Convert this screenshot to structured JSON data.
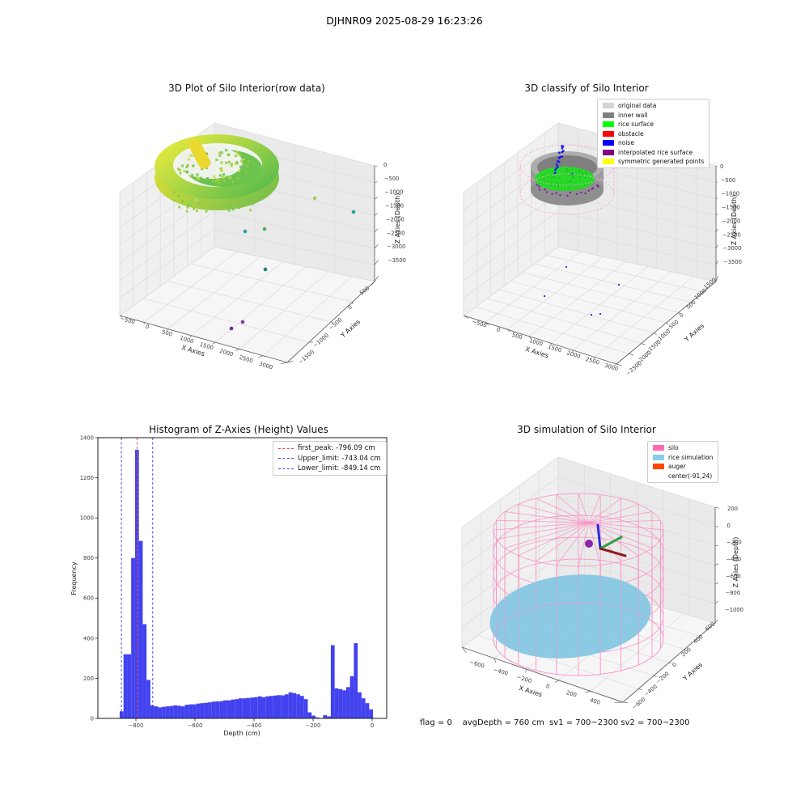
{
  "page": {
    "suptitle": "DJHNR09 2025-08-29 16:23:26",
    "footer": "flag = 0    avgDepth = 760 cm  sv1 = 700~2300 sv2 = 700~2300"
  },
  "chart_data": [
    {
      "id": "raw_3d",
      "type": "scatter",
      "projection": "3d",
      "title": "3D Plot of Silo Interior(row data)",
      "xlabel": "X Axies",
      "ylabel": "Y Axies",
      "zlabel": "Z Axies (Depth)",
      "x_ticks": [
        -500,
        0,
        500,
        1000,
        1500,
        2000,
        2500,
        3000
      ],
      "y_ticks": [
        500,
        0,
        -500,
        -1000,
        -1500
      ],
      "z_ticks": [
        0,
        -500,
        -1000,
        -1500,
        -2000,
        -2500,
        -3000,
        -3500
      ],
      "series": [
        {
          "name": "silo rim point cloud",
          "colors": [
            "#f3ee3a",
            "#b5da45",
            "#5cbd4c"
          ],
          "note": "dense yellow-green ring of points near z=0 with points spilling below the rim"
        },
        {
          "name": "sparse outlier points",
          "colors": [
            "#2aa198",
            "#44b05e",
            "#6d2f8e"
          ],
          "note": "isolated green, teal and purple points scattered toward the floor"
        }
      ]
    },
    {
      "id": "classify_3d",
      "type": "scatter",
      "projection": "3d",
      "title": "3D classify of Silo Interior",
      "xlabel": "X Axies",
      "ylabel": "Y Axies",
      "zlabel": "Z Axies (Depth)",
      "x_ticks": [
        -500,
        0,
        500,
        1000,
        1500,
        2000,
        2500,
        3000
      ],
      "y_ticks": [
        1500,
        1000,
        500,
        0,
        -500,
        -1000,
        -1500,
        -2000,
        -2500
      ],
      "z_ticks": [
        0,
        -500,
        -1000,
        -1500,
        -2000,
        -2500,
        -3000,
        -3500
      ],
      "legend": [
        {
          "label": "original data",
          "color": "#d3d3d3"
        },
        {
          "label": "inner wall",
          "color": "#808080"
        },
        {
          "label": "rice surface",
          "color": "#00ff00"
        },
        {
          "label": "obstacle",
          "color": "#ff0000"
        },
        {
          "label": "noise",
          "color": "#0000ff"
        },
        {
          "label": "interpolated rice surface",
          "color": "#800080"
        },
        {
          "label": "symmetric generated points",
          "color": "#ffff00"
        }
      ],
      "series": [
        {
          "name": "inner wall",
          "note": "gray dotted cylinder with pink dotted outline, green rice surface disk inside, blue noise streak at top center, purple interpolated dots on lower rim, stray blue noise points below"
        }
      ]
    },
    {
      "id": "histogram",
      "type": "bar",
      "title": "Histogram of Z-Axies (Height) Values",
      "xlabel": "Depth (cm)",
      "ylabel": "Frequency",
      "x_ticks": [
        -800,
        -600,
        -400,
        -200,
        0
      ],
      "y_ticks": [
        0,
        200,
        400,
        600,
        800,
        1000,
        1200,
        1400
      ],
      "ylim": [
        0,
        1400
      ],
      "bar_color": "#4242ef",
      "bin_start": -855,
      "bin_width": 13,
      "values": [
        35,
        320,
        320,
        800,
        1340,
        885,
        470,
        192,
        65,
        60,
        55,
        58,
        60,
        62,
        65,
        63,
        60,
        68,
        70,
        70,
        74,
        76,
        78,
        80,
        84,
        85,
        86,
        90,
        90,
        94,
        96,
        100,
        100,
        102,
        104,
        106,
        110,
        106,
        110,
        112,
        114,
        116,
        115,
        120,
        130,
        126,
        120,
        112,
        96,
        30,
        14,
        5,
        2,
        16,
        10,
        365,
        150,
        146,
        140,
        156,
        210,
        375,
        130,
        100,
        76,
        45
      ],
      "lines": [
        {
          "label": "first_peak: -796.09 cm",
          "value": -796.09,
          "color": "#e04a4a",
          "style": "dashed"
        },
        {
          "label": "Upper_limit: -743.04 cm",
          "value": -743.04,
          "color": "#4444dd",
          "style": "dashed"
        },
        {
          "label": "Lower_limit: -849.14 cm",
          "value": -849.14,
          "color": "#4444dd",
          "style": "dashed"
        }
      ]
    },
    {
      "id": "simulation_3d",
      "type": "scatter",
      "projection": "3d",
      "title": "3D simulation of Silo Interior",
      "xlabel": "X Axies",
      "ylabel": "Y Axies",
      "zlabel": "Z Axies (Depth)",
      "x_ticks": [
        -600,
        -400,
        -200,
        0,
        200,
        400
      ],
      "y_ticks": [
        600,
        400,
        200,
        0,
        -200,
        -400,
        -600
      ],
      "z_ticks": [
        200,
        0,
        -200,
        -400,
        -600,
        -800,
        -1000
      ],
      "legend": [
        {
          "label": "silo",
          "color": "#ff69b4"
        },
        {
          "label": "rice simulation",
          "color": "#87ceeb"
        },
        {
          "label": "auger",
          "color": "#ff4500"
        },
        {
          "label": "center(-91,24)",
          "color": null
        }
      ],
      "series": [
        {
          "name": "silo",
          "note": "pink wireframe cylinder with radial spokes at the top"
        },
        {
          "name": "rice simulation",
          "note": "sky-blue tilted point-cloud surface filling the lower cylinder"
        },
        {
          "name": "auger / center marker",
          "note": "purple sphere with RGB axis triad near the cylinder top center"
        }
      ]
    }
  ]
}
